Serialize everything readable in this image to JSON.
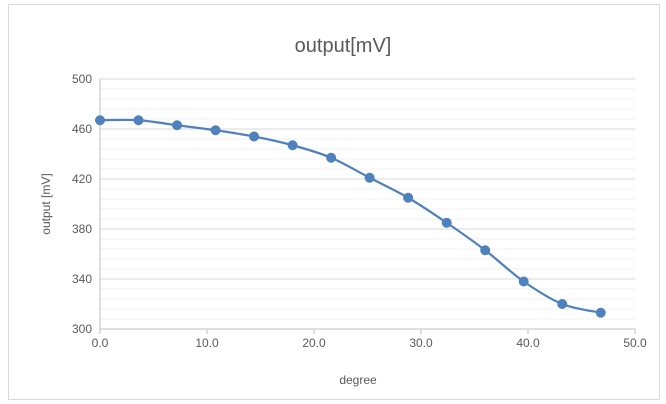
{
  "chart_data": {
    "type": "scatter",
    "title": "output[mV]",
    "xlabel": "degree",
    "ylabel": "output [mV]",
    "xlim": [
      0,
      50
    ],
    "ylim": [
      300,
      500
    ],
    "x_ticks": [
      "0.0",
      "10.0",
      "20.0",
      "30.0",
      "40.0",
      "50.0"
    ],
    "y_ticks": [
      "300",
      "340",
      "380",
      "420",
      "460",
      "500"
    ],
    "x_tick_values": [
      0,
      10,
      20,
      30,
      40,
      50
    ],
    "y_tick_values": [
      300,
      340,
      380,
      420,
      460,
      500
    ],
    "y_minor_step": 8,
    "grid": true,
    "smooth": true,
    "series": [
      {
        "color": "#4f81bd",
        "x": [
          0.0,
          3.6,
          7.2,
          10.8,
          14.4,
          18.0,
          21.6,
          25.2,
          28.8,
          32.4,
          36.0,
          39.6,
          43.2,
          46.8
        ],
        "y": [
          467,
          467,
          463,
          459,
          454,
          447,
          437,
          421,
          405,
          385,
          363,
          338,
          320,
          313
        ]
      }
    ]
  }
}
